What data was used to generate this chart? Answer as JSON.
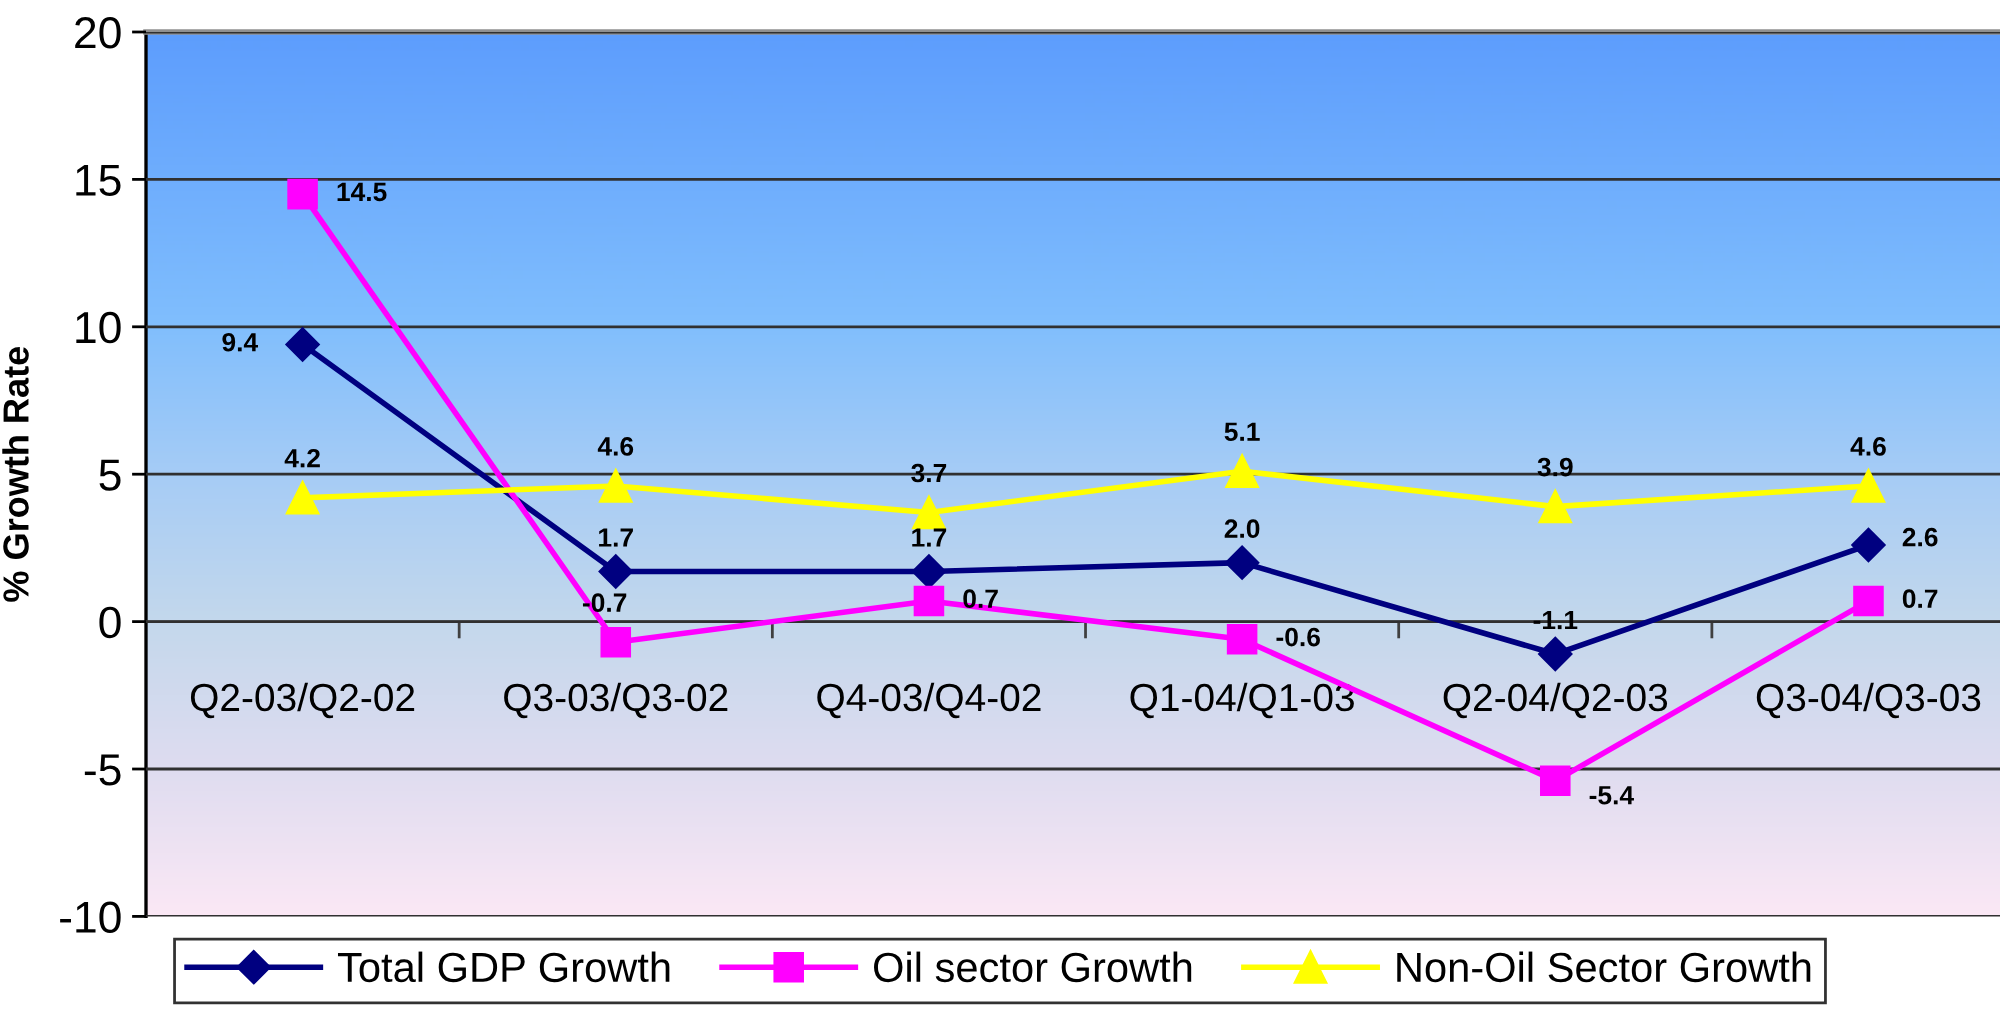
{
  "chart_data": {
    "type": "line",
    "ylabel": "% Growth Rate",
    "categories": [
      "Q2-03/Q2-02",
      "Q3-03/Q3-02",
      "Q4-03/Q4-02",
      "Q1-04/Q1-03",
      "Q2-04/Q2-03",
      "Q3-04/Q3-03"
    ],
    "series": [
      {
        "name": "Total GDP Growth",
        "color": "#000080",
        "marker": "diamond",
        "values": [
          9.4,
          1.7,
          1.7,
          2.0,
          -1.1,
          2.6
        ],
        "value_labels": [
          "9.4",
          "1.7",
          "1.7",
          "2.0",
          "-1.1",
          "2.6"
        ]
      },
      {
        "name": "Oil sector Growth",
        "color": "#ff00ff",
        "marker": "square",
        "values": [
          14.5,
          -0.7,
          0.7,
          -0.6,
          -5.4,
          0.7
        ],
        "value_labels": [
          "14.5",
          "-0.7",
          "0.7",
          "-0.6",
          "-5.4",
          "0.7"
        ]
      },
      {
        "name": "Non-Oil Sector Growth",
        "color": "#ffff00",
        "marker": "triangle",
        "values": [
          4.2,
          4.6,
          3.7,
          5.1,
          3.9,
          4.6
        ],
        "value_labels": [
          "4.2",
          "4.6",
          "3.7",
          "5.1",
          "3.9",
          "4.6"
        ]
      }
    ],
    "ylim": [
      -10,
      20
    ],
    "yticks": [
      -10,
      -5,
      0,
      5,
      10,
      15,
      20
    ],
    "grid": "y",
    "legend": "bottom",
    "line_style": "solid"
  }
}
